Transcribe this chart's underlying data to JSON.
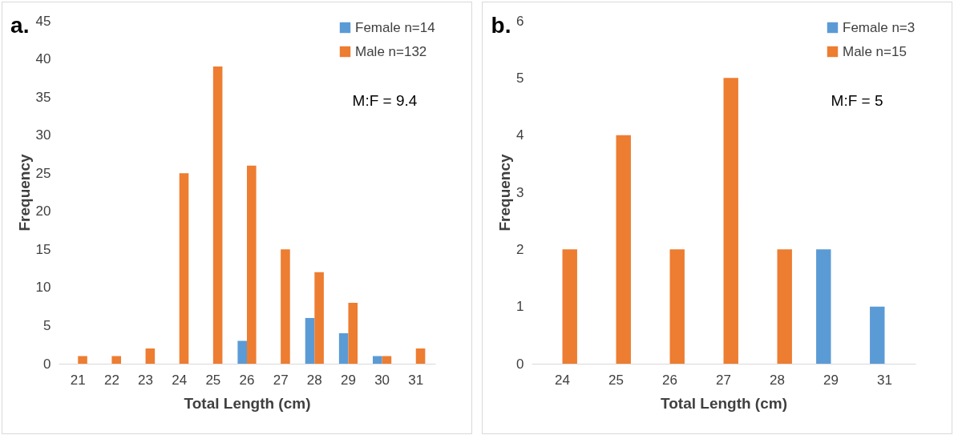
{
  "chart_data": [
    {
      "type": "bar",
      "title": "a.",
      "categories": [
        "21",
        "22",
        "23",
        "24",
        "25",
        "26",
        "27",
        "28",
        "29",
        "30",
        "31"
      ],
      "series": [
        {
          "name": "Female n=14",
          "color": "#5b9bd5",
          "values": [
            0,
            0,
            0,
            0,
            0,
            3,
            0,
            6,
            4,
            1,
            0
          ]
        },
        {
          "name": "Male n=132",
          "color": "#ed7d31",
          "values": [
            1,
            1,
            2,
            25,
            39,
            26,
            15,
            12,
            8,
            1,
            2
          ]
        }
      ],
      "ylim": [
        0,
        45
      ],
      "yticks": [
        0,
        5,
        10,
        15,
        20,
        25,
        30,
        35,
        40,
        45
      ],
      "xlabel": "Total Length (cm)",
      "ylabel": "Frequency",
      "legend": "top right",
      "grid": false,
      "annotations": [
        "M:F = 9.4"
      ]
    },
    {
      "type": "bar",
      "title": "b.",
      "categories": [
        "24",
        "25",
        "26",
        "27",
        "28",
        "29",
        "31"
      ],
      "series": [
        {
          "name": "Female n=3",
          "color": "#5b9bd5",
          "values": [
            0,
            0,
            0,
            0,
            0,
            2,
            1
          ]
        },
        {
          "name": "Male n=15",
          "color": "#ed7d31",
          "values": [
            2,
            4,
            2,
            5,
            2,
            0,
            0
          ]
        }
      ],
      "ylim": [
        0,
        6
      ],
      "yticks": [
        0,
        1,
        2,
        3,
        4,
        5,
        6
      ],
      "xlabel": "Total Length (cm)",
      "ylabel": "Frequency",
      "legend": "top right",
      "grid": false,
      "annotations": [
        "M:F = 5"
      ]
    }
  ]
}
